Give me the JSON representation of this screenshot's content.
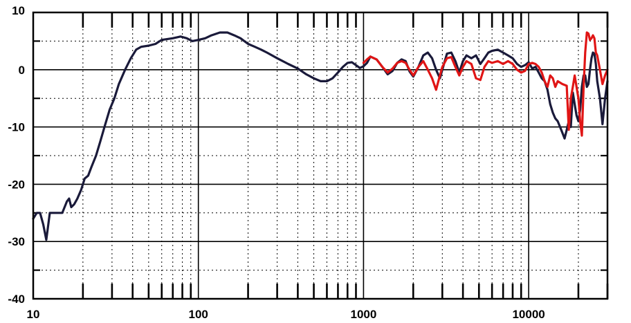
{
  "chart_data": {
    "type": "line",
    "title": "",
    "xlabel": "",
    "ylabel": "",
    "xscale": "log",
    "xlim": [
      10,
      30000
    ],
    "ylim": [
      -40,
      10
    ],
    "grid": true,
    "legend": "none",
    "x_tick_labels": [
      "10",
      "100",
      "1000",
      "10000"
    ],
    "x_tick_values": [
      10,
      100,
      1000,
      10000
    ],
    "y_tick_labels": [
      "10",
      "0",
      "-10",
      "-20",
      "-30",
      "-40"
    ],
    "y_tick_values": [
      10,
      0,
      -10,
      -20,
      -30,
      -40
    ],
    "series": [
      {
        "color": "#1a1a3a",
        "points": [
          [
            10,
            -26
          ],
          [
            10.5,
            -25
          ],
          [
            11,
            -25
          ],
          [
            11.5,
            -27
          ],
          [
            12,
            -29.7
          ],
          [
            12.6,
            -25
          ],
          [
            13.5,
            -25
          ],
          [
            15,
            -25
          ],
          [
            16,
            -23
          ],
          [
            16.5,
            -22.5
          ],
          [
            17,
            -24
          ],
          [
            17.7,
            -23.5
          ],
          [
            18.5,
            -22.5
          ],
          [
            19.5,
            -21
          ],
          [
            20.5,
            -19
          ],
          [
            21.5,
            -18.5
          ],
          [
            22.5,
            -17
          ],
          [
            24,
            -15
          ],
          [
            25.5,
            -12.5
          ],
          [
            27,
            -10
          ],
          [
            29,
            -7
          ],
          [
            31,
            -5
          ],
          [
            33,
            -2.5
          ],
          [
            36,
            0
          ],
          [
            39,
            2
          ],
          [
            42,
            3.5
          ],
          [
            45,
            4
          ],
          [
            50,
            4.2
          ],
          [
            55,
            4.5
          ],
          [
            60,
            5.2
          ],
          [
            70,
            5.5
          ],
          [
            78,
            5.8
          ],
          [
            85,
            5.5
          ],
          [
            92,
            5
          ],
          [
            100,
            5.2
          ],
          [
            110,
            5.5
          ],
          [
            120,
            6
          ],
          [
            135,
            6.5
          ],
          [
            150,
            6.5
          ],
          [
            165,
            6
          ],
          [
            180,
            5.5
          ],
          [
            200,
            4.5
          ],
          [
            220,
            4
          ],
          [
            240,
            3.5
          ],
          [
            260,
            3
          ],
          [
            300,
            2
          ],
          [
            350,
            1
          ],
          [
            400,
            0.2
          ],
          [
            450,
            -0.8
          ],
          [
            500,
            -1.5
          ],
          [
            550,
            -2
          ],
          [
            600,
            -2
          ],
          [
            650,
            -1.5
          ],
          [
            700,
            -0.5
          ],
          [
            750,
            0.5
          ],
          [
            800,
            1.2
          ],
          [
            850,
            1.3
          ],
          [
            900,
            0.8
          ],
          [
            950,
            0.3
          ],
          [
            1000,
            0.6
          ],
          [
            1050,
            1.2
          ],
          [
            1100,
            2.3
          ],
          [
            1200,
            1.8
          ],
          [
            1300,
            0.5
          ],
          [
            1400,
            -0.8
          ],
          [
            1500,
            -0.2
          ],
          [
            1600,
            1.2
          ],
          [
            1700,
            1.8
          ],
          [
            1800,
            1.5
          ],
          [
            1900,
            -0.3
          ],
          [
            2000,
            -1.2
          ],
          [
            2150,
            0.5
          ],
          [
            2300,
            2.5
          ],
          [
            2450,
            3
          ],
          [
            2600,
            2
          ],
          [
            2750,
            0
          ],
          [
            2900,
            -1.5
          ],
          [
            3000,
            0
          ],
          [
            3200,
            2.8
          ],
          [
            3400,
            3
          ],
          [
            3600,
            1.5
          ],
          [
            3800,
            -0.5
          ],
          [
            4000,
            1.5
          ],
          [
            4200,
            2.5
          ],
          [
            4500,
            2
          ],
          [
            4800,
            2.5
          ],
          [
            5100,
            1
          ],
          [
            5400,
            2
          ],
          [
            5700,
            3
          ],
          [
            6000,
            3.3
          ],
          [
            6500,
            3.5
          ],
          [
            7000,
            3
          ],
          [
            7500,
            2.5
          ],
          [
            8000,
            2
          ],
          [
            8500,
            1
          ],
          [
            9000,
            0.5
          ],
          [
            9500,
            0.8
          ],
          [
            10000,
            1.3
          ],
          [
            10500,
            0.2
          ],
          [
            11000,
            0.5
          ],
          [
            11500,
            -0.5
          ],
          [
            12000,
            -1.5
          ],
          [
            12500,
            -2
          ],
          [
            13000,
            -3.5
          ],
          [
            13500,
            -6
          ],
          [
            14000,
            -7.5
          ],
          [
            14500,
            -8.5
          ],
          [
            15000,
            -9
          ],
          [
            15500,
            -10
          ],
          [
            16000,
            -11
          ],
          [
            16500,
            -12
          ],
          [
            17000,
            -10.5
          ],
          [
            17500,
            -9
          ],
          [
            18000,
            -10
          ],
          [
            18500,
            -4
          ],
          [
            19000,
            -6
          ],
          [
            19500,
            -8
          ],
          [
            20000,
            -9
          ],
          [
            20500,
            -7
          ],
          [
            21000,
            -3
          ],
          [
            21500,
            -1
          ],
          [
            22000,
            -1
          ],
          [
            22500,
            -3
          ],
          [
            23000,
            -2.5
          ],
          [
            23500,
            0
          ],
          [
            24000,
            2
          ],
          [
            24500,
            3
          ],
          [
            25000,
            2.8
          ],
          [
            25500,
            1
          ],
          [
            26000,
            -2
          ],
          [
            27000,
            -5
          ],
          [
            28000,
            -9.5
          ],
          [
            29000,
            -5
          ],
          [
            30000,
            -2
          ]
        ]
      },
      {
        "color": "#e01515",
        "points": [
          [
            1000,
            1.2
          ],
          [
            1050,
            1.8
          ],
          [
            1100,
            2.3
          ],
          [
            1200,
            1.8
          ],
          [
            1300,
            0.5
          ],
          [
            1400,
            -0.5
          ],
          [
            1500,
            0.2
          ],
          [
            1600,
            1.2
          ],
          [
            1700,
            1.5
          ],
          [
            1800,
            1.2
          ],
          [
            1900,
            0
          ],
          [
            2000,
            -1
          ],
          [
            2150,
            0.5
          ],
          [
            2300,
            1.5
          ],
          [
            2450,
            0
          ],
          [
            2600,
            -1.5
          ],
          [
            2750,
            -3.5
          ],
          [
            2900,
            -1
          ],
          [
            3000,
            0.5
          ],
          [
            3200,
            2
          ],
          [
            3400,
            2.2
          ],
          [
            3600,
            0.5
          ],
          [
            3800,
            -1
          ],
          [
            4000,
            0.5
          ],
          [
            4200,
            1.5
          ],
          [
            4500,
            1
          ],
          [
            4800,
            -1.5
          ],
          [
            5100,
            -1.8
          ],
          [
            5400,
            0.5
          ],
          [
            5700,
            1.5
          ],
          [
            6000,
            1.2
          ],
          [
            6500,
            1.5
          ],
          [
            7000,
            1
          ],
          [
            7500,
            1.5
          ],
          [
            8000,
            1
          ],
          [
            8500,
            0
          ],
          [
            9000,
            -0.5
          ],
          [
            9500,
            -0.2
          ],
          [
            10000,
            1
          ],
          [
            10500,
            1.2
          ],
          [
            11000,
            1
          ],
          [
            11500,
            0.5
          ],
          [
            12000,
            -0.5
          ],
          [
            12500,
            -2
          ],
          [
            13000,
            -3
          ],
          [
            13500,
            -1
          ],
          [
            14000,
            -1.5
          ],
          [
            14500,
            -3
          ],
          [
            15000,
            -2
          ],
          [
            16000,
            -2.5
          ],
          [
            17000,
            -2.8
          ],
          [
            17500,
            -10.5
          ],
          [
            18000,
            -5
          ],
          [
            18500,
            -3
          ],
          [
            19000,
            -1
          ],
          [
            19500,
            -3
          ],
          [
            20000,
            -5
          ],
          [
            20500,
            -9
          ],
          [
            21000,
            -11.5
          ],
          [
            21500,
            -3
          ],
          [
            22000,
            3
          ],
          [
            22500,
            6.5
          ],
          [
            23000,
            6.3
          ],
          [
            23500,
            5.2
          ],
          [
            24000,
            5.5
          ],
          [
            24500,
            6
          ],
          [
            25000,
            5.5
          ],
          [
            25500,
            3
          ],
          [
            26000,
            2.5
          ],
          [
            27000,
            0
          ],
          [
            28000,
            -2.5
          ],
          [
            29000,
            -1
          ],
          [
            30000,
            0
          ]
        ]
      }
    ]
  }
}
